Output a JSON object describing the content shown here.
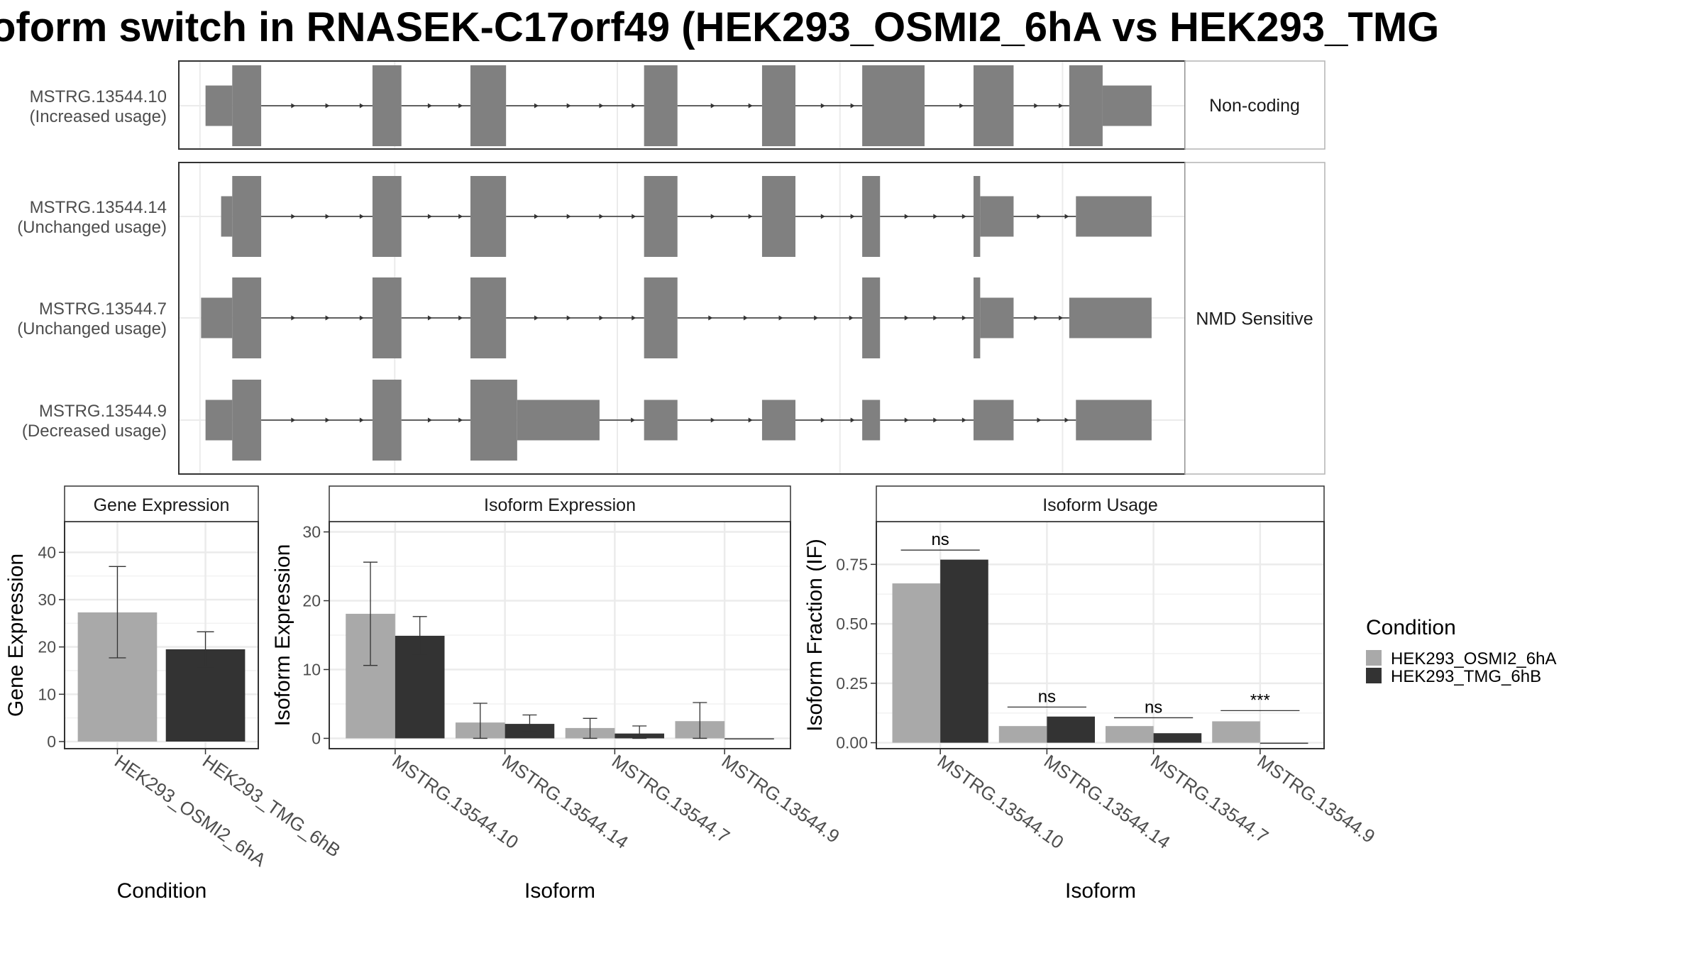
{
  "title": "oform switch in RNASEK-C17orf49 (HEK293_OSMI2_6hA vs HEK293_TMG",
  "colors": {
    "exon": "#808080",
    "intron": "#333333",
    "cond_a": "#a9a9a9",
    "cond_b": "#333333",
    "panel_border": "#333333",
    "strip_border": "#b3b3b3",
    "grid": "#ebebeb",
    "axis_text": "#4d4d4d"
  },
  "structure": {
    "strip_labels": [
      "Non-coding",
      "NMD Sensitive"
    ],
    "isoforms": [
      {
        "id": "MSTRG.13544.10",
        "usage": "(Increased usage)",
        "strip": 0,
        "exons": [
          {
            "start": 1.5,
            "end": 2.7,
            "coding": false
          },
          {
            "start": 2.7,
            "end": 4.0,
            "coding": true
          },
          {
            "start": 9.0,
            "end": 10.3,
            "coding": true
          },
          {
            "start": 13.4,
            "end": 15.0,
            "coding": true
          },
          {
            "start": 21.2,
            "end": 22.7,
            "coding": true
          },
          {
            "start": 26.5,
            "end": 28.0,
            "coding": true
          },
          {
            "start": 31.0,
            "end": 33.8,
            "coding": true
          },
          {
            "start": 36.0,
            "end": 37.8,
            "coding": true
          },
          {
            "start": 40.3,
            "end": 41.8,
            "coding": true
          },
          {
            "start": 41.8,
            "end": 44.0,
            "coding": false
          }
        ]
      },
      {
        "id": "MSTRG.13544.14",
        "usage": "(Unchanged usage)",
        "strip": 1,
        "exons": [
          {
            "start": 2.2,
            "end": 2.7,
            "coding": false
          },
          {
            "start": 2.7,
            "end": 4.0,
            "coding": true
          },
          {
            "start": 9.0,
            "end": 10.3,
            "coding": true
          },
          {
            "start": 13.4,
            "end": 15.0,
            "coding": true
          },
          {
            "start": 21.2,
            "end": 22.7,
            "coding": true
          },
          {
            "start": 26.5,
            "end": 28.0,
            "coding": true
          },
          {
            "start": 31.0,
            "end": 31.8,
            "coding": true
          },
          {
            "start": 36.0,
            "end": 36.3,
            "coding": true
          },
          {
            "start": 36.3,
            "end": 37.8,
            "coding": false
          },
          {
            "start": 40.6,
            "end": 44.0,
            "coding": false
          }
        ]
      },
      {
        "id": "MSTRG.13544.7",
        "usage": "(Unchanged usage)",
        "strip": 1,
        "exons": [
          {
            "start": 1.3,
            "end": 2.7,
            "coding": false
          },
          {
            "start": 2.7,
            "end": 4.0,
            "coding": true
          },
          {
            "start": 9.0,
            "end": 10.3,
            "coding": true
          },
          {
            "start": 13.4,
            "end": 15.0,
            "coding": true
          },
          {
            "start": 21.2,
            "end": 22.7,
            "coding": true
          },
          {
            "start": 31.0,
            "end": 31.8,
            "coding": true
          },
          {
            "start": 36.0,
            "end": 36.3,
            "coding": true
          },
          {
            "start": 36.3,
            "end": 37.8,
            "coding": false
          },
          {
            "start": 40.3,
            "end": 44.0,
            "coding": false
          }
        ]
      },
      {
        "id": "MSTRG.13544.9",
        "usage": "(Decreased usage)",
        "strip": 1,
        "exons": [
          {
            "start": 1.5,
            "end": 2.7,
            "coding": false
          },
          {
            "start": 2.7,
            "end": 4.0,
            "coding": true
          },
          {
            "start": 9.0,
            "end": 10.3,
            "coding": true
          },
          {
            "start": 13.4,
            "end": 15.5,
            "coding": true
          },
          {
            "start": 15.5,
            "end": 19.2,
            "coding": false
          },
          {
            "start": 21.2,
            "end": 22.7,
            "coding": false
          },
          {
            "start": 26.5,
            "end": 28.0,
            "coding": false
          },
          {
            "start": 31.0,
            "end": 31.8,
            "coding": false
          },
          {
            "start": 36.0,
            "end": 37.8,
            "coding": false
          },
          {
            "start": 40.6,
            "end": 44.0,
            "coding": false
          }
        ]
      }
    ]
  },
  "chart_data": [
    {
      "type": "bar",
      "title": "Gene Expression",
      "xlabel": "Condition",
      "ylabel": "Gene Expression",
      "categories": [
        "HEK293_OSMI2_6hA",
        "HEK293_TMG_6hB"
      ],
      "values": [
        27.3,
        19.5
      ],
      "error_low": [
        17.7,
        15.8
      ],
      "error_high": [
        37.0,
        23.2
      ],
      "ylim": [
        -1.5,
        46.5
      ],
      "yticks": [
        0,
        10,
        20,
        30,
        40
      ],
      "grid": true
    },
    {
      "type": "bar",
      "title": "Isoform Expression",
      "xlabel": "Isoform",
      "ylabel": "Isoform Expression",
      "categories": [
        "MSTRG.13544.10",
        "MSTRG.13544.14",
        "MSTRG.13544.7",
        "MSTRG.13544.9"
      ],
      "series": [
        {
          "name": "HEK293_OSMI2_6hA",
          "values": [
            18.1,
            2.3,
            1.5,
            2.5
          ],
          "error_low": [
            10.6,
            0.0,
            0.0,
            0.0
          ],
          "error_high": [
            25.6,
            5.1,
            2.9,
            5.2
          ]
        },
        {
          "name": "HEK293_TMG_6hB",
          "values": [
            14.9,
            2.1,
            0.7,
            0.0
          ],
          "error_low": [
            12.2,
            1.0,
            0.0,
            0.0
          ],
          "error_high": [
            17.7,
            3.4,
            1.8,
            0.0
          ]
        }
      ],
      "ylim": [
        -1.5,
        31.5
      ],
      "yticks": [
        0,
        10,
        20,
        30
      ],
      "grid": true
    },
    {
      "type": "bar",
      "title": "Isoform Usage",
      "xlabel": "Isoform",
      "ylabel": "Isoform Fraction (IF)",
      "categories": [
        "MSTRG.13544.10",
        "MSTRG.13544.14",
        "MSTRG.13544.7",
        "MSTRG.13544.9"
      ],
      "series": [
        {
          "name": "HEK293_OSMI2_6hA",
          "values": [
            0.67,
            0.07,
            0.07,
            0.09
          ]
        },
        {
          "name": "HEK293_TMG_6hB",
          "values": [
            0.77,
            0.11,
            0.04,
            0.0
          ]
        }
      ],
      "significance": [
        "ns",
        "ns",
        "ns",
        "***"
      ],
      "sig_line_y": [
        0.81,
        0.15,
        0.105,
        0.135
      ],
      "ylim": [
        -0.025,
        0.93
      ],
      "yticks": [
        0.0,
        0.25,
        0.5,
        0.75
      ],
      "ytick_labels": [
        "0.00",
        "0.25",
        "0.50",
        "0.75"
      ],
      "grid": true
    }
  ],
  "legend": {
    "title": "Condition",
    "items": [
      "HEK293_OSMI2_6hA",
      "HEK293_TMG_6hB"
    ]
  }
}
